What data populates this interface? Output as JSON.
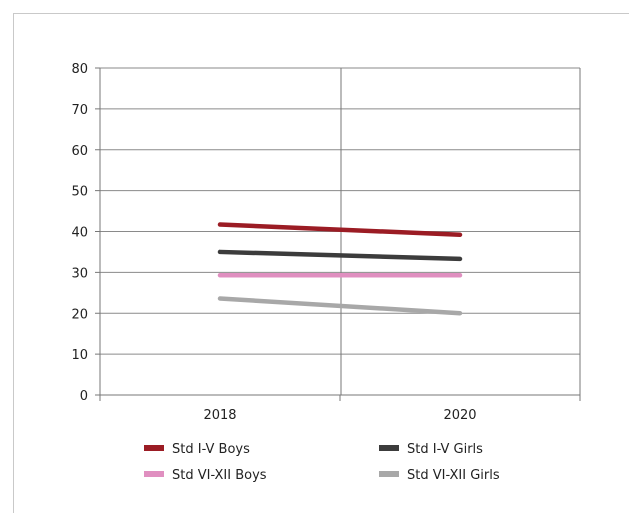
{
  "chart_data": {
    "type": "line",
    "title": "",
    "xlabel": "",
    "ylabel": "",
    "categories": [
      "2018",
      "2020"
    ],
    "ylim": [
      0,
      80
    ],
    "yticks": [
      "0",
      "10",
      "20",
      "30",
      "40",
      "50",
      "60",
      "70",
      "80"
    ],
    "grid": true,
    "legend_position": "bottom",
    "series": [
      {
        "name": "Std I-V Boys",
        "values": [
          41.7,
          39.2
        ],
        "color": "#9b1c24"
      },
      {
        "name": "Std I-V Girls",
        "values": [
          35.0,
          33.3
        ],
        "color": "#3c3c3c"
      },
      {
        "name": "Std VI-XII Boys",
        "values": [
          29.3,
          29.3
        ],
        "color": "#e08fc0"
      },
      {
        "name": "Std VI-XII Girls",
        "values": [
          23.6,
          20.0
        ],
        "color": "#a8a8a8"
      }
    ]
  }
}
